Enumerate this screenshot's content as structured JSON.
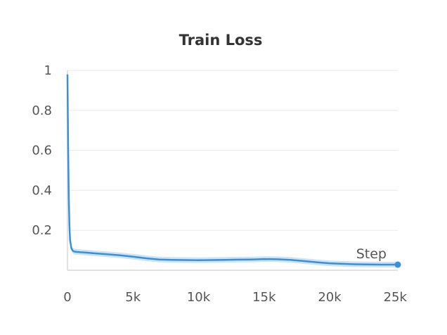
{
  "chart_data": {
    "type": "line",
    "title": "Train Loss",
    "xlabel": "Step",
    "ylabel": "",
    "xlim": [
      0,
      25200
    ],
    "ylim": [
      0,
      1
    ],
    "xticks": [
      0,
      5000,
      10000,
      15000,
      20000,
      25000
    ],
    "xtick_labels": [
      "0",
      "5k",
      "10k",
      "15k",
      "20k",
      "25k"
    ],
    "yticks": [
      0.2,
      0.4,
      0.6,
      0.8,
      1
    ],
    "ytick_labels": [
      "0.2",
      "0.4",
      "0.6",
      "0.8",
      "1"
    ],
    "grid": true,
    "colors": {
      "line": "#3a8fdc",
      "raw": "#b9d8f2",
      "end_marker": "#3a8fdc"
    },
    "series": [
      {
        "x": [
          0,
          50,
          100,
          150,
          200,
          300,
          400,
          500,
          700,
          1000,
          1500,
          2000,
          3000,
          4000,
          5000,
          6000,
          7000,
          8000,
          9000,
          10000,
          11000,
          12000,
          13000,
          14000,
          15000,
          16000,
          17000,
          18000,
          19000,
          20000,
          21000,
          22000,
          23000,
          24000,
          25000,
          25200
        ],
        "y": [
          0.98,
          0.62,
          0.36,
          0.22,
          0.15,
          0.11,
          0.098,
          0.094,
          0.092,
          0.09,
          0.088,
          0.085,
          0.08,
          0.075,
          0.068,
          0.06,
          0.054,
          0.052,
          0.051,
          0.05,
          0.051,
          0.052,
          0.053,
          0.054,
          0.056,
          0.055,
          0.052,
          0.046,
          0.04,
          0.035,
          0.032,
          0.03,
          0.029,
          0.028,
          0.028,
          0.028
        ]
      }
    ]
  }
}
